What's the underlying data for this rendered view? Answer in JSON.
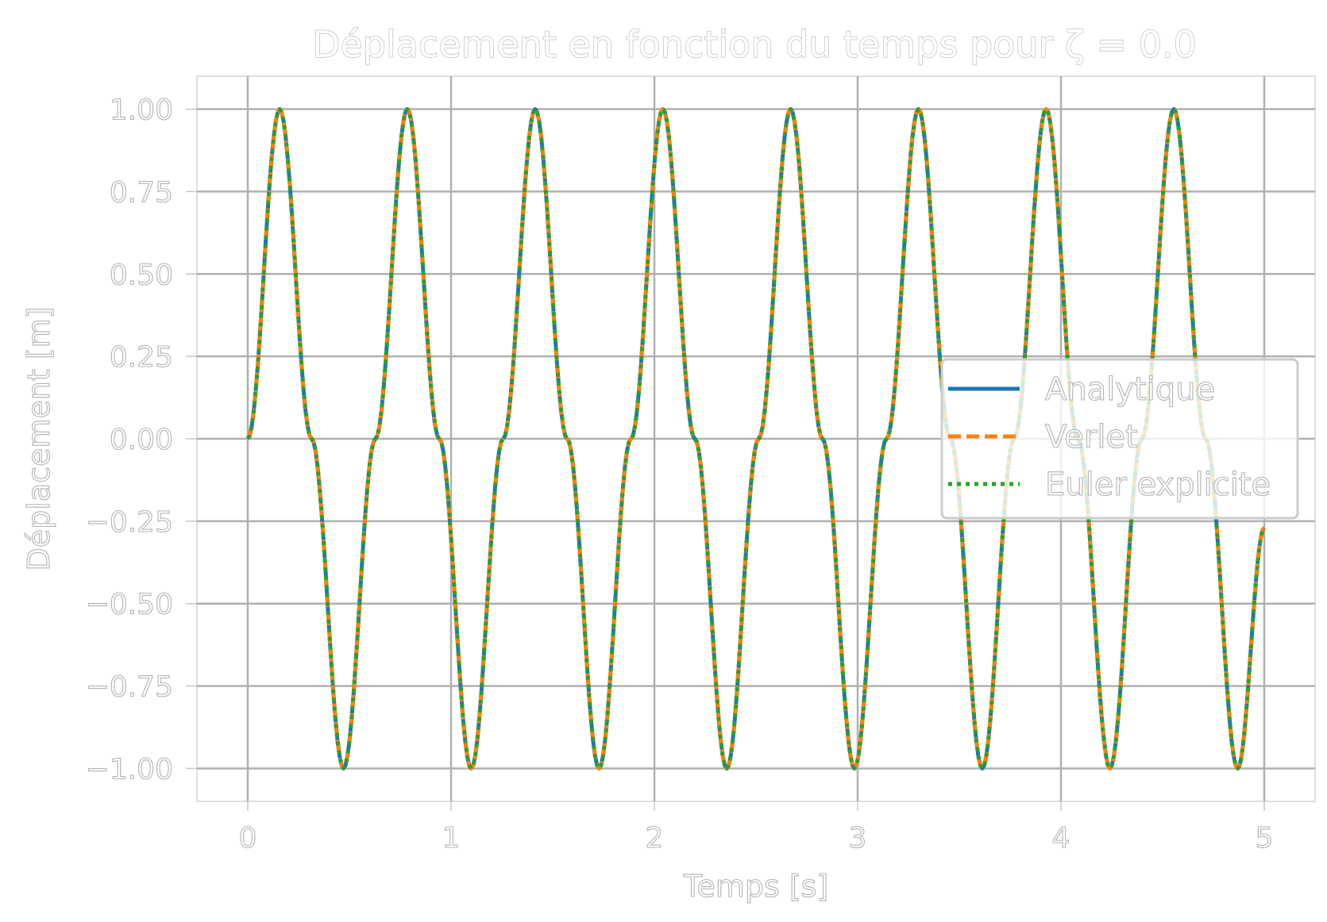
{
  "chart_data": {
    "type": "line",
    "title": "Déplacement en fonction du temps pour ζ = 0.0",
    "xlabel": "Temps [s]",
    "ylabel": "Déplacement [m]",
    "xlim": [
      -0.25,
      5.25
    ],
    "ylim": [
      -1.1,
      1.1
    ],
    "xticks": [
      0,
      1,
      2,
      3,
      4,
      5
    ],
    "xtick_labels": [
      "0",
      "1",
      "2",
      "3",
      "4",
      "5"
    ],
    "yticks": [
      1.0,
      0.75,
      0.5,
      0.25,
      0.0,
      -0.25,
      -0.5,
      -0.75,
      -1.0
    ],
    "ytick_labels": [
      "1.00",
      "0.75",
      "0.50",
      "0.25",
      "0.00",
      "−0.25",
      "−0.50",
      "−0.75",
      "−1.00"
    ],
    "grid": true,
    "legend_position": "center-right",
    "x": [
      0,
      0.157,
      0.314,
      0.471,
      0.628,
      0.785,
      0.942,
      1.099,
      1.256,
      1.414,
      1.571,
      1.728,
      1.885,
      2.042,
      2.199,
      2.356,
      2.513,
      2.67,
      2.827,
      2.984,
      3.142,
      3.299,
      3.456,
      3.613,
      3.77,
      3.927,
      4.084,
      4.241,
      4.398,
      4.555,
      4.712,
      4.869,
      5.0
    ],
    "series": [
      {
        "name": "Analytique",
        "color": "#1f77b4",
        "style": "solid",
        "values": [
          0,
          1,
          0,
          -1,
          0,
          1,
          0,
          -1,
          0,
          1,
          0,
          -1,
          0,
          1,
          0,
          -1,
          0,
          1,
          0,
          -1,
          0,
          1,
          0,
          -1,
          0,
          1,
          0,
          -1,
          0,
          1,
          0,
          -1,
          -0.27
        ]
      },
      {
        "name": "Verlet",
        "color": "#ff7f0e",
        "style": "dashed",
        "values": [
          0,
          1,
          0,
          -1,
          0,
          1,
          0,
          -1,
          0,
          1,
          0,
          -1,
          0,
          1,
          0,
          -1,
          0,
          1,
          0,
          -1,
          0,
          1,
          0,
          -1,
          0,
          1,
          0,
          -1,
          0,
          1,
          0,
          -1,
          -0.27
        ]
      },
      {
        "name": "Euler explicite",
        "color": "#2ca02c",
        "style": "dotted",
        "values": [
          0,
          1,
          0,
          -1,
          0,
          1,
          0,
          -1,
          0,
          1,
          0,
          -1,
          0,
          1,
          0,
          -1,
          0,
          1,
          0,
          -1,
          0,
          1,
          0,
          -1,
          0,
          1,
          0,
          -1,
          0,
          1,
          0,
          -1,
          -0.27
        ]
      }
    ]
  }
}
